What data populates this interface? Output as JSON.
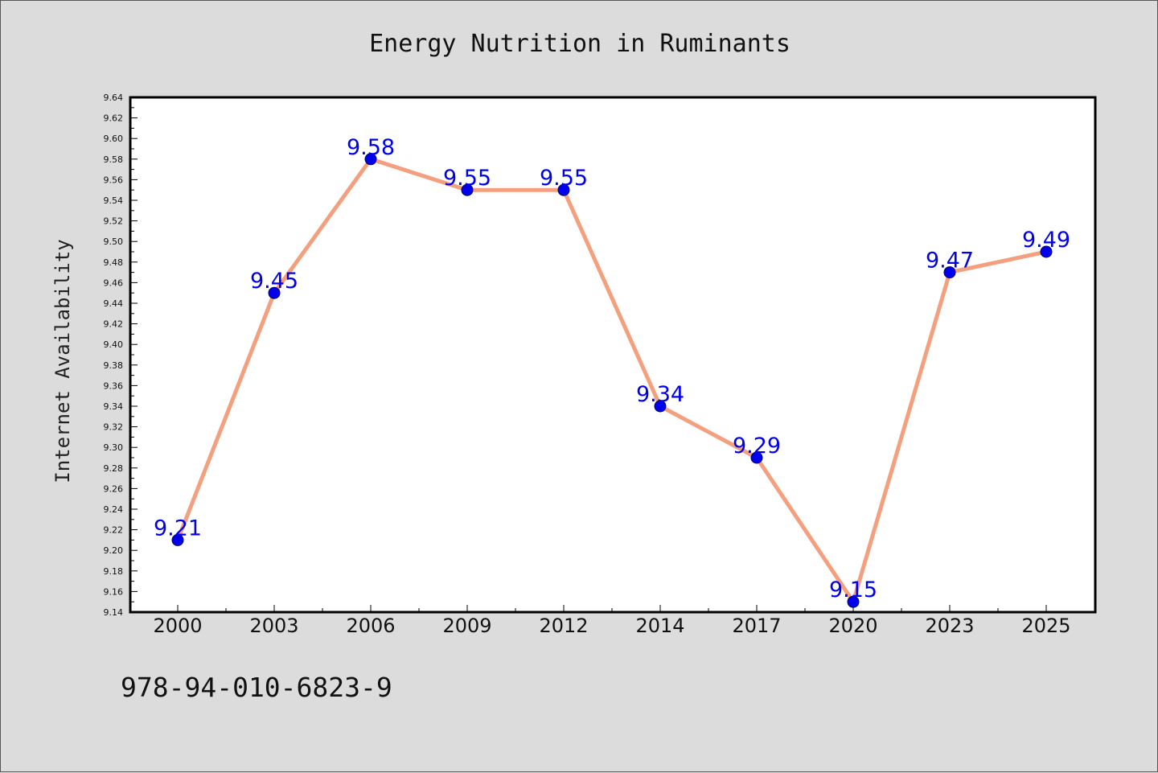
{
  "chart_data": {
    "type": "line",
    "title": "Energy Nutrition in Ruminants",
    "xlabel": "",
    "ylabel": "Internet Availability",
    "categories": [
      "2000",
      "2003",
      "2006",
      "2009",
      "2012",
      "2014",
      "2017",
      "2020",
      "2023",
      "2025"
    ],
    "values": [
      9.21,
      9.45,
      9.58,
      9.55,
      9.55,
      9.34,
      9.29,
      9.15,
      9.47,
      9.49
    ],
    "data_labels": [
      "9.21",
      "9.45",
      "9.58",
      "9.55",
      "9.55",
      "9.34",
      "9.29",
      "9.15",
      "9.47",
      "9.49"
    ],
    "ylim": [
      9.14,
      9.64
    ],
    "y_major_ticks": [
      "9.14",
      "9.16",
      "9.18",
      "9.20",
      "9.22",
      "9.24",
      "9.26",
      "9.28",
      "9.30",
      "9.32",
      "9.34",
      "9.36",
      "9.38",
      "9.40",
      "9.42",
      "9.44",
      "9.46",
      "9.48",
      "9.50",
      "9.52",
      "9.54",
      "9.56",
      "9.58",
      "9.60",
      "9.62",
      "9.64"
    ],
    "grid": false,
    "legend": "none",
    "colors": {
      "line": "#f4a07f",
      "marker_fill": "#0000ee",
      "marker_edge": "#000066",
      "label": "#0000ee",
      "axes_bg": "#ffffff",
      "figure_bg": "#dcdcdc"
    }
  },
  "footnote": "978-94-010-6823-9"
}
